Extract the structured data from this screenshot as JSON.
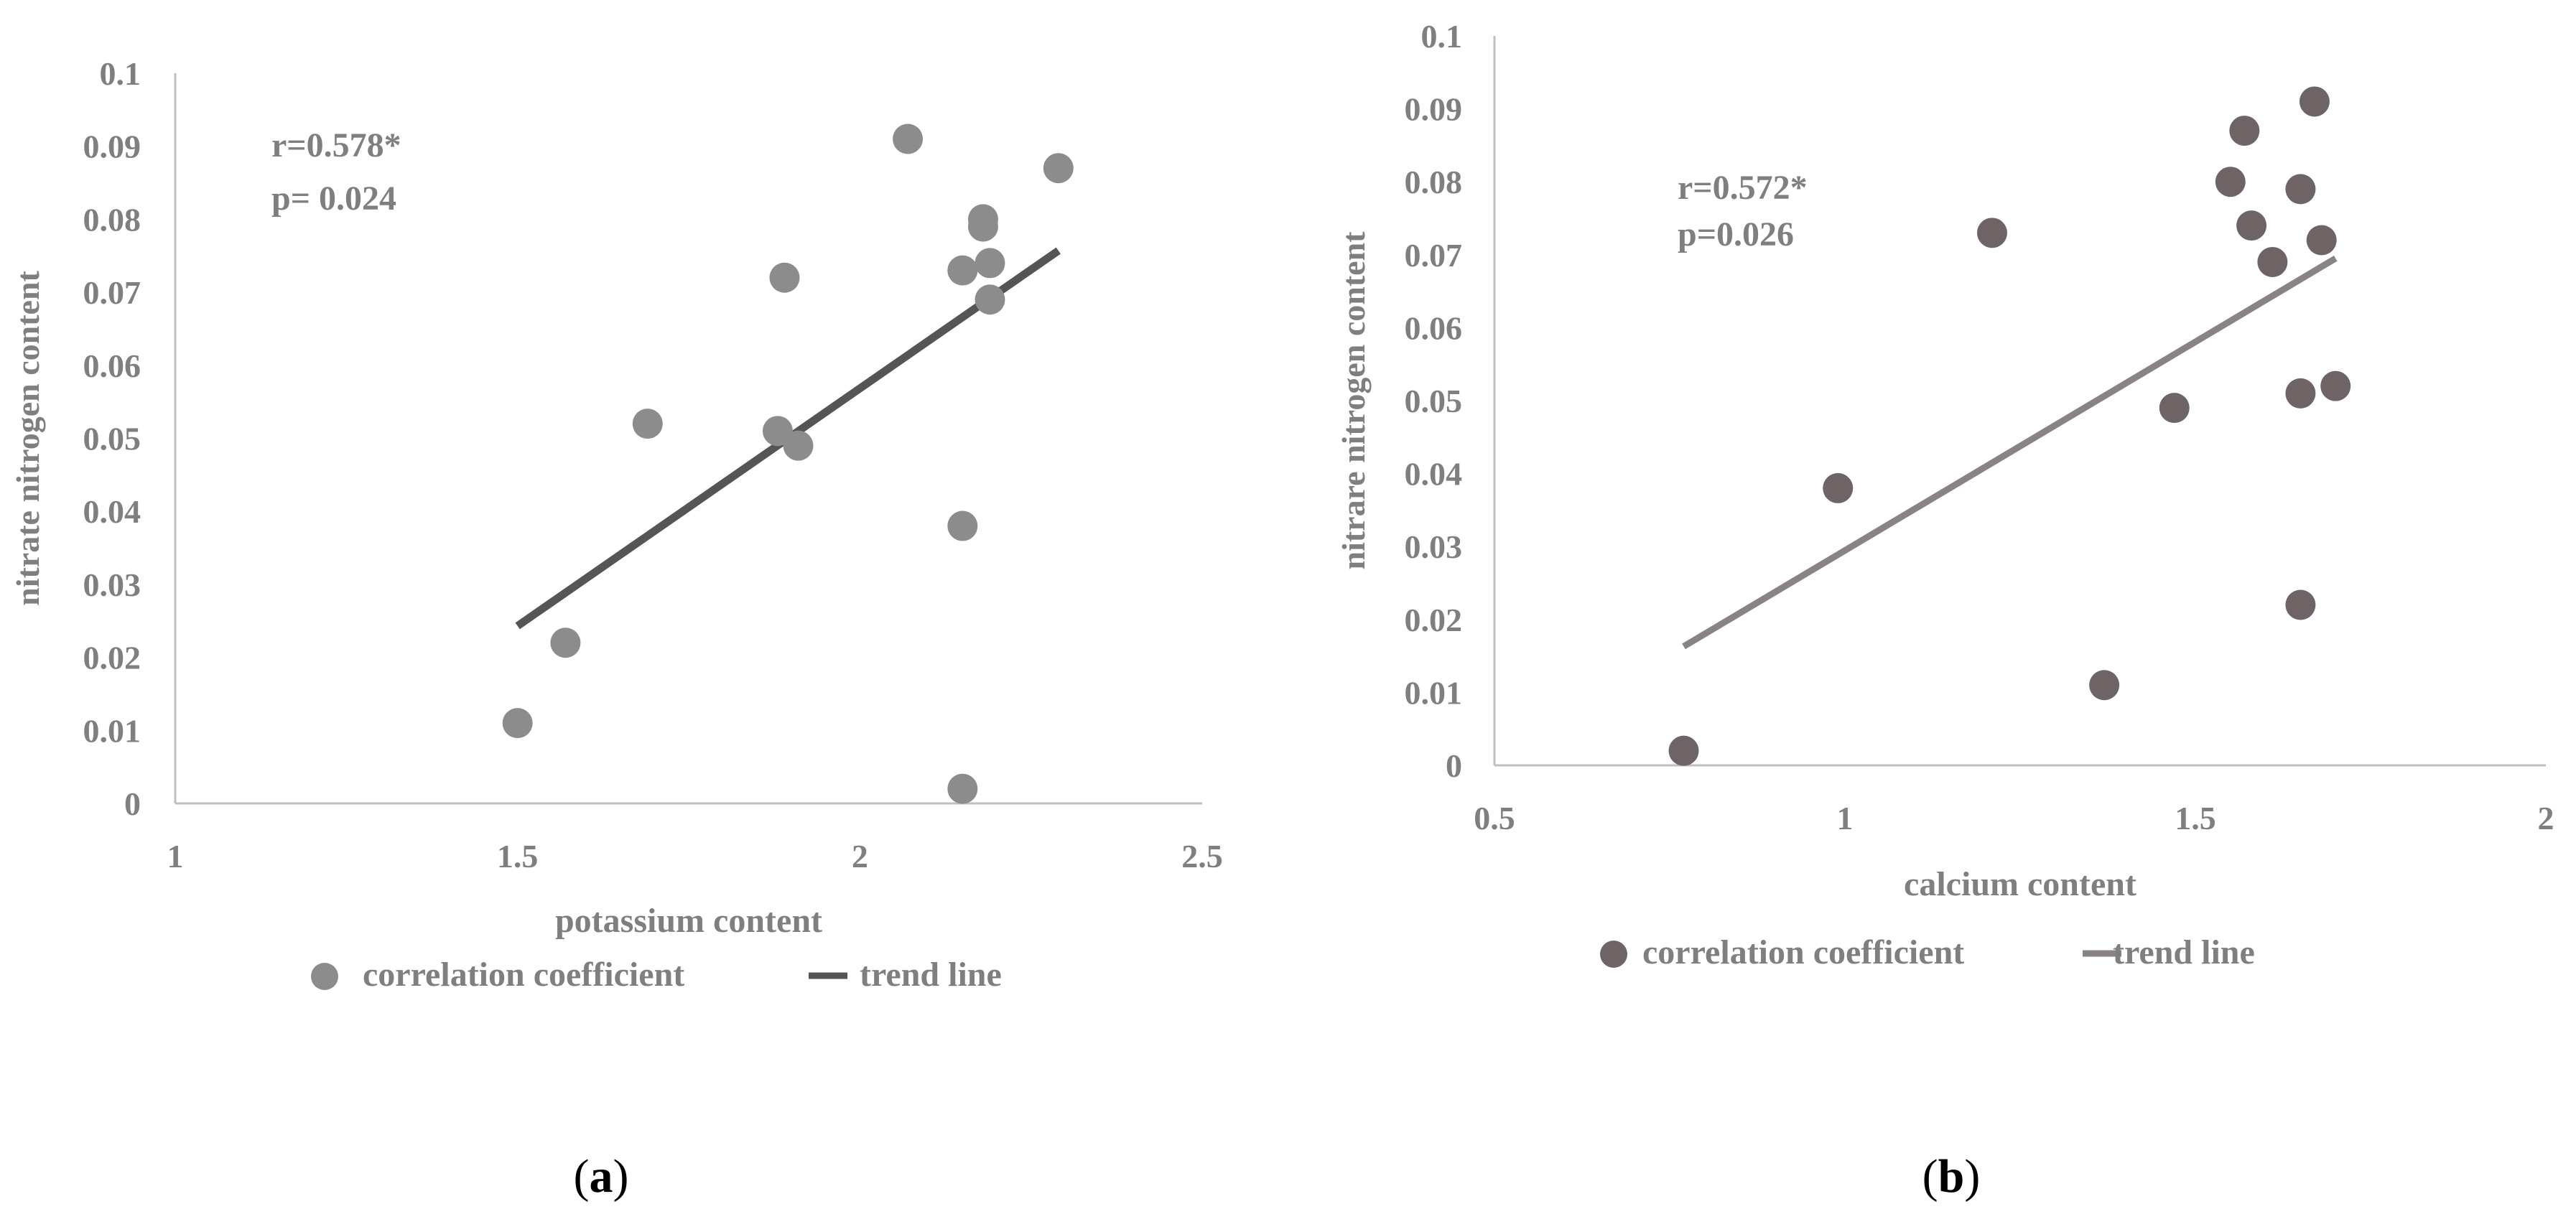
{
  "chart_data": [
    {
      "type": "scatter",
      "panel_label": "a",
      "xlabel": "potassium content",
      "ylabel": "nitrate nitrogen content",
      "xlim": [
        1,
        2.5
      ],
      "ylim": [
        0,
        0.1
      ],
      "xticks": [
        "1",
        "1.5",
        "2",
        "2.5"
      ],
      "yticks": [
        "0",
        "0.01",
        "0.02",
        "0.03",
        "0.04",
        "0.05",
        "0.06",
        "0.07",
        "0.08",
        "0.09",
        "0.1"
      ],
      "annotation": [
        "r=0.578*",
        "p= 0.024"
      ],
      "legend": [
        "correlation coefficient",
        "trend line"
      ],
      "points": [
        [
          1.5,
          0.011
        ],
        [
          1.57,
          0.022
        ],
        [
          1.69,
          0.052
        ],
        [
          1.88,
          0.051
        ],
        [
          1.89,
          0.072
        ],
        [
          1.91,
          0.049
        ],
        [
          2.07,
          0.091
        ],
        [
          2.15,
          0.073
        ],
        [
          2.15,
          0.038
        ],
        [
          2.15,
          0.002
        ],
        [
          2.18,
          0.08
        ],
        [
          2.18,
          0.079
        ],
        [
          2.19,
          0.074
        ],
        [
          2.19,
          0.069
        ],
        [
          2.29,
          0.087
        ]
      ],
      "trend": [
        [
          1.5,
          0.0243
        ],
        [
          2.29,
          0.0757
        ]
      ],
      "colors": {
        "point": "#8c8c8c",
        "trend": "#555555",
        "text": "#7f7f7f",
        "axis": "#bfbfbf"
      }
    },
    {
      "type": "scatter",
      "panel_label": "b",
      "xlabel": "calcium content",
      "ylabel": "nitrare nitrogen content",
      "xlim": [
        0.5,
        2
      ],
      "ylim": [
        0,
        0.1
      ],
      "xticks": [
        "0.5",
        "1",
        "1.5",
        "2"
      ],
      "yticks": [
        "0",
        "0.01",
        "0.02",
        "0.03",
        "0.04",
        "0.05",
        "0.06",
        "0.07",
        "0.08",
        "0.09",
        "0.1"
      ],
      "annotation": [
        "r=0.572*",
        "p=0.026"
      ],
      "legend": [
        "correlation coefficient",
        "trend line"
      ],
      "points": [
        [
          0.77,
          0.002
        ],
        [
          0.99,
          0.038
        ],
        [
          1.21,
          0.073
        ],
        [
          1.37,
          0.011
        ],
        [
          1.47,
          0.049
        ],
        [
          1.55,
          0.08
        ],
        [
          1.57,
          0.087
        ],
        [
          1.58,
          0.074
        ],
        [
          1.61,
          0.069
        ],
        [
          1.65,
          0.079
        ],
        [
          1.65,
          0.051
        ],
        [
          1.65,
          0.022
        ],
        [
          1.67,
          0.091
        ],
        [
          1.68,
          0.072
        ],
        [
          1.7,
          0.052
        ]
      ],
      "trend": [
        [
          0.77,
          0.0163
        ],
        [
          1.7,
          0.0695
        ]
      ],
      "colors": {
        "point": "#6e6466",
        "trend": "#8a8385",
        "text": "#7f7f7f",
        "axis": "#bfbfbf"
      }
    }
  ]
}
